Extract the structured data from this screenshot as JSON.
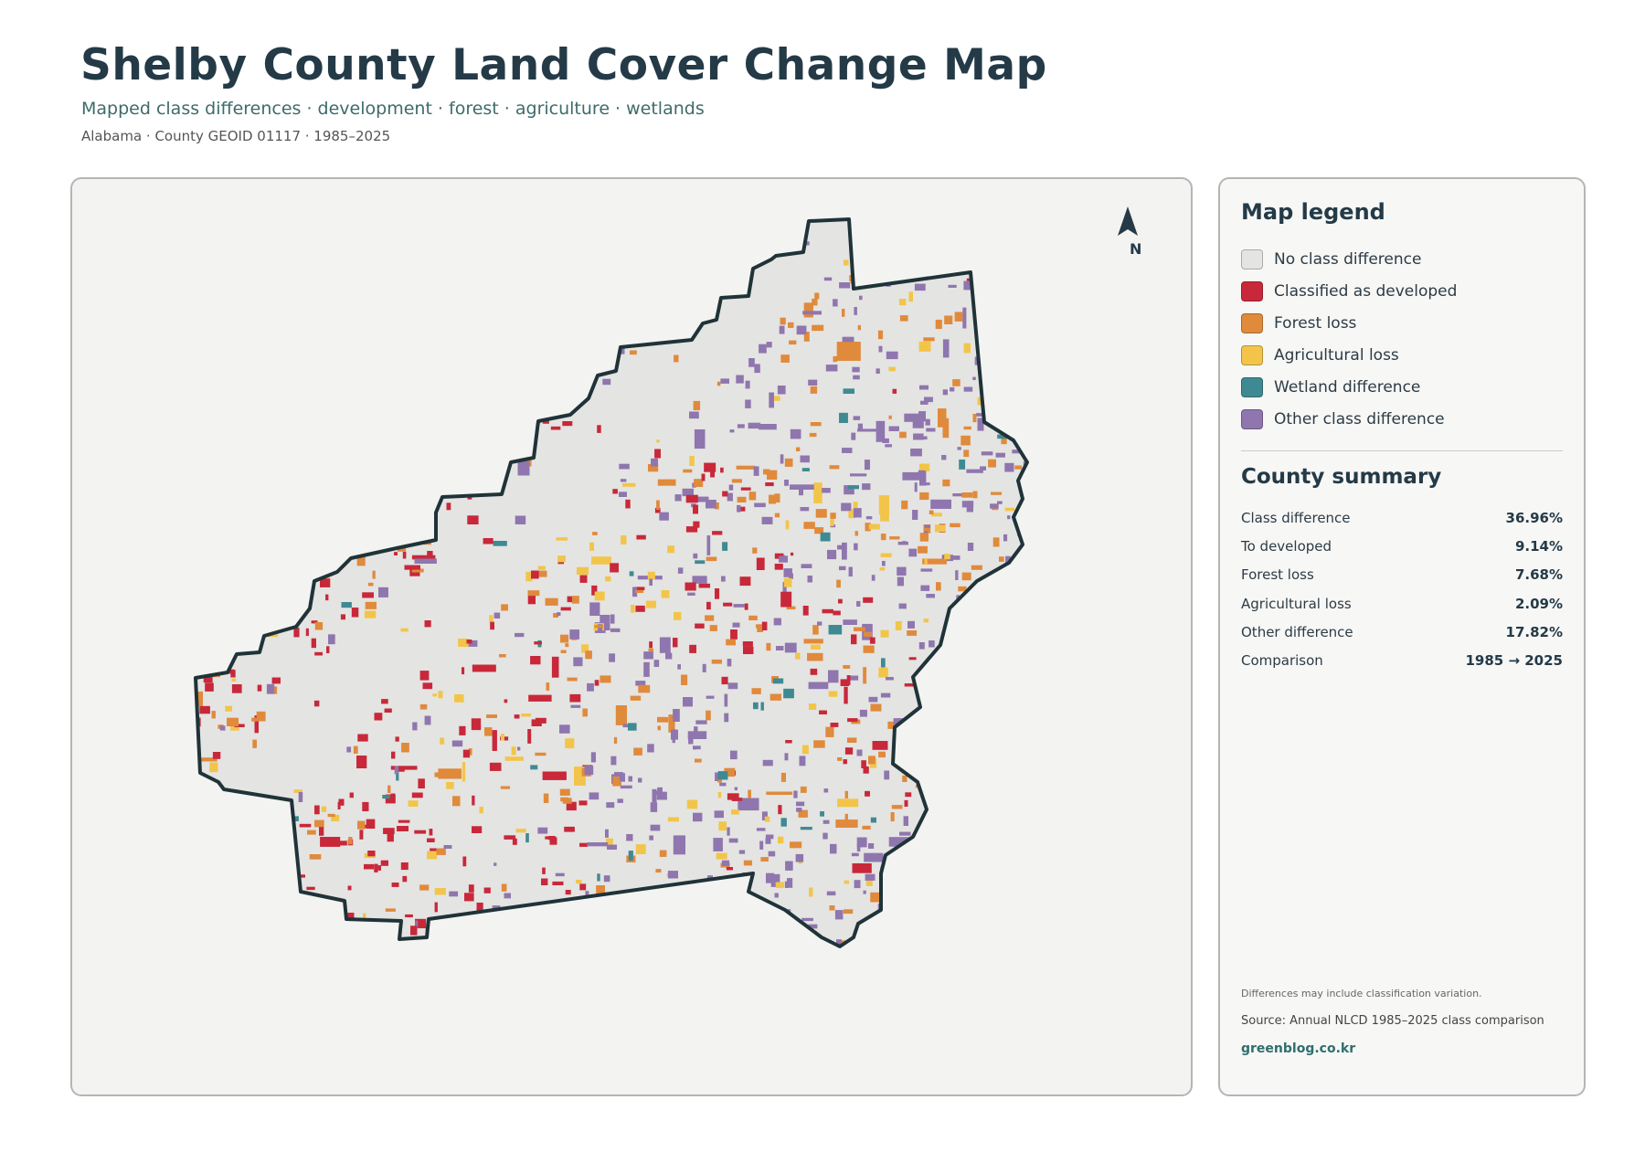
{
  "header": {
    "title": "Shelby County Land Cover Change Map",
    "subtitle": "Mapped class differences · development · forest · agriculture · wetlands",
    "meta": "Alabama · County GEOID 01117 · 1985–2025"
  },
  "map": {
    "north_label": "N",
    "outline_color": "#1f3338",
    "background_class": "No class difference"
  },
  "legend": {
    "title": "Map legend",
    "items": [
      {
        "label": "No class difference",
        "color": "#e4e4e2"
      },
      {
        "label": "Classified as developed",
        "color": "#c8283a"
      },
      {
        "label": "Forest loss",
        "color": "#e08a3c"
      },
      {
        "label": "Agricultural loss",
        "color": "#f2c54a"
      },
      {
        "label": "Wetland difference",
        "color": "#3f8a92"
      },
      {
        "label": "Other class difference",
        "color": "#8f76ae"
      }
    ]
  },
  "summary": {
    "title": "County summary",
    "rows": [
      {
        "label": "Class difference",
        "value": "36.96%"
      },
      {
        "label": "To developed",
        "value": "9.14%"
      },
      {
        "label": "Forest loss",
        "value": "7.68%"
      },
      {
        "label": "Agricultural loss",
        "value": "2.09%"
      },
      {
        "label": "Other difference",
        "value": "17.82%"
      },
      {
        "label": "Comparison",
        "value": "1985 → 2025"
      }
    ]
  },
  "footer": {
    "note": "Differences may include classification variation.",
    "source": "Source: Annual NLCD 1985–2025 class comparison",
    "site": "greenblog.co.kr"
  }
}
